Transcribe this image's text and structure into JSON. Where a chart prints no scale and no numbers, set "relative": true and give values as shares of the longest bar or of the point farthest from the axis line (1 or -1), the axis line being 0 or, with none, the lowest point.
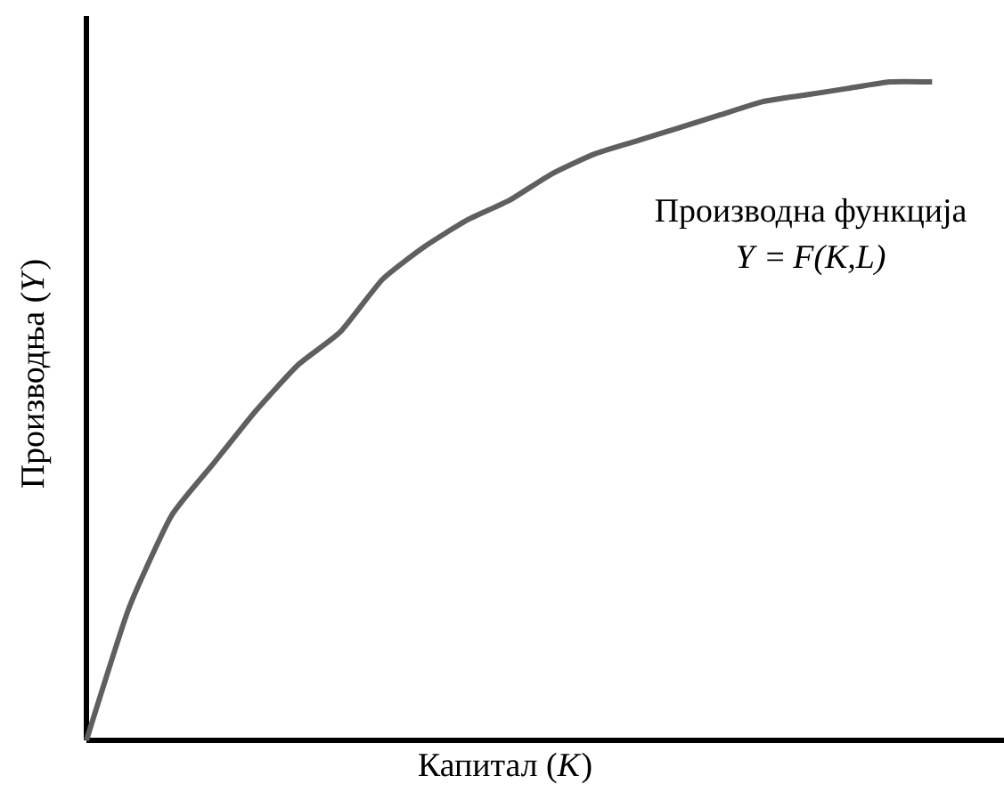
{
  "chart_data": {
    "type": "line",
    "relative": true,
    "xlabel": "Капитал (*K*)",
    "ylabel": "Производња (*Y*)",
    "annotations": [
      "Производна функција",
      "*Y* = *F(K,L)*"
    ],
    "categories": [
      null,
      null,
      null,
      null,
      null,
      null,
      null,
      null,
      null,
      null,
      null,
      null,
      null,
      null,
      null,
      null,
      null,
      null,
      null,
      null,
      null
    ],
    "series": [
      {
        "color": "#5f5f5f",
        "values": [
          0,
          0.2,
          0.34,
          0.42,
          0.5,
          0.57,
          0.62,
          0.7,
          0.75,
          0.79,
          0.82,
          0.86,
          0.89,
          0.91,
          0.93,
          0.95,
          0.97,
          0.98,
          0.99,
          1.0,
          1.0
        ]
      }
    ]
  }
}
